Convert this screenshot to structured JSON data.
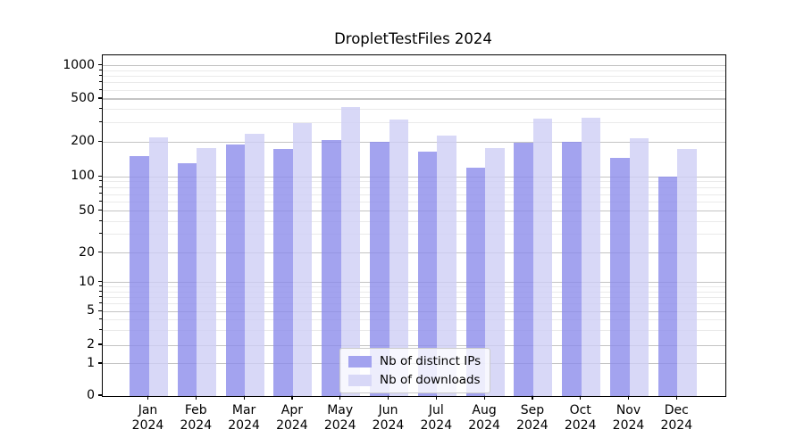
{
  "title": "DropletTestFiles 2024",
  "chart_data": {
    "type": "bar",
    "title": "DropletTestFiles 2024",
    "categories": [
      "Jan",
      "Feb",
      "Mar",
      "Apr",
      "May",
      "Jun",
      "Jul",
      "Aug",
      "Sep",
      "Oct",
      "Nov",
      "Dec"
    ],
    "x_year_label": "2024",
    "series": [
      {
        "name": "Nb of distinct IPs",
        "color": "#a3a3ef",
        "values": [
          150,
          130,
          190,
          175,
          210,
          201,
          165,
          120,
          198,
          202,
          145,
          100
        ]
      },
      {
        "name": "Nb of downloads",
        "color": "#d8d8f7",
        "values": [
          220,
          178,
          240,
          300,
          420,
          320,
          230,
          178,
          330,
          335,
          215,
          175
        ]
      }
    ],
    "y_axis": {
      "scale": "symlog",
      "ticks": [
        0,
        1,
        2,
        5,
        10,
        20,
        50,
        100,
        200,
        500,
        1000
      ],
      "minor_ticks": [
        3,
        4,
        6,
        7,
        8,
        9,
        30,
        40,
        60,
        70,
        80,
        90,
        300,
        400,
        600,
        700,
        800,
        900
      ],
      "ylim": [
        0,
        1250
      ]
    },
    "legend": {
      "position": "lower center",
      "labels": [
        "Nb of distinct IPs",
        "Nb of downloads"
      ]
    },
    "grid": true
  },
  "colors": {
    "major_grid": "#c4c4c4",
    "minor_grid": "#eaeaea",
    "axis": "#000000",
    "background": "#ffffff"
  }
}
